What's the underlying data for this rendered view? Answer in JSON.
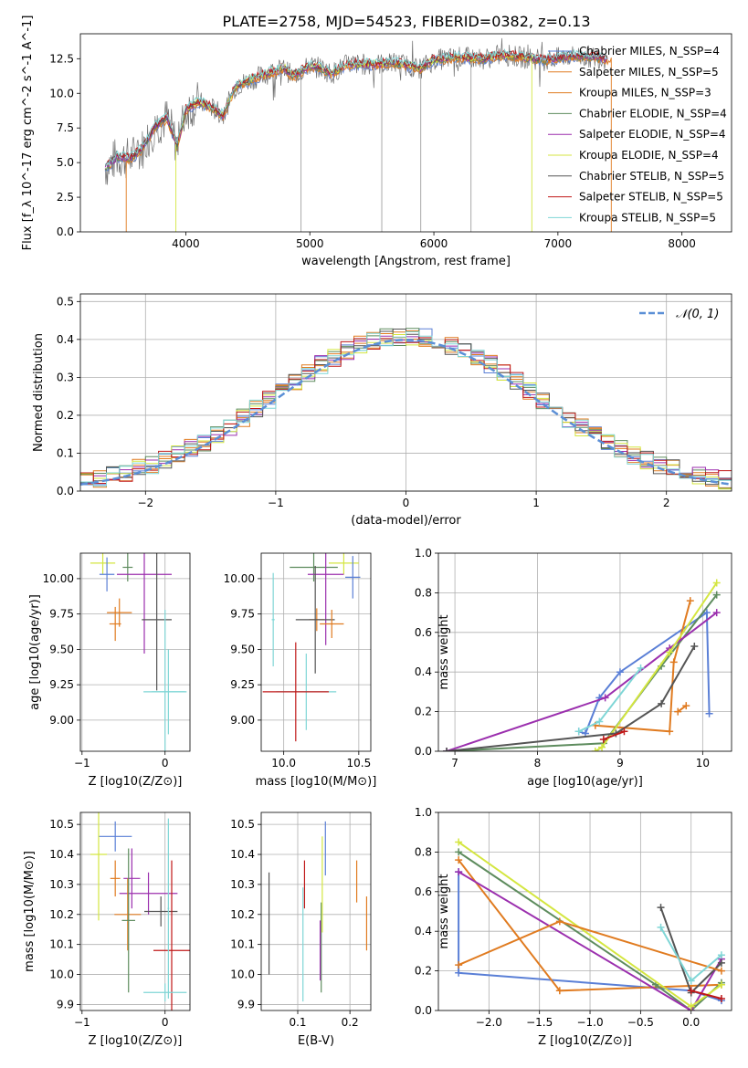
{
  "figure_title": "PLATE=2758, MJD=54523, FIBERID=0382, z=0.13",
  "colors": {
    "Chabrier MILES": "#5a7fd6",
    "Salpeter MILES": "#e07b20",
    "Kroupa MILES": "#e07b20",
    "Chabrier ELODIE": "#5e8c5e",
    "Salpeter ELODIE": "#9b2fae",
    "Kroupa ELODIE": "#d4e640",
    "Chabrier STELIB": "#555555",
    "Salpeter STELIB": "#c01818",
    "Kroupa STELIB": "#7fd6d6"
  },
  "chart_data": [
    {
      "id": "spectrum",
      "type": "line",
      "title": "PLATE=2758, MJD=54523, FIBERID=0382, z=0.13",
      "xlabel": "wavelength [Angstrom, rest frame]",
      "ylabel": "Flux [f_λ 10^-17 erg cm^-2 s^-1 A^-1]",
      "xlim": [
        3150,
        8400
      ],
      "ylim": [
        0,
        14.3
      ],
      "xticks": [
        "4000",
        "5000",
        "6000",
        "7000",
        "8000"
      ],
      "yticks": [
        "0.0",
        "2.5",
        "5.0",
        "7.5",
        "10.0",
        "12.5"
      ],
      "grid": false,
      "legend_position": "top-right",
      "legend": [
        {
          "label": "Chabrier MILES, N_SSP=4",
          "color": "#5a7fd6"
        },
        {
          "label": "Salpeter MILES, N_SSP=5",
          "color": "#e07b20"
        },
        {
          "label": "Kroupa MILES, N_SSP=3",
          "color": "#e07b20"
        },
        {
          "label": "Chabrier ELODIE, N_SSP=4",
          "color": "#5e8c5e"
        },
        {
          "label": "Salpeter ELODIE, N_SSP=4",
          "color": "#9b2fae"
        },
        {
          "label": "Kroupa ELODIE, N_SSP=4",
          "color": "#d4e640"
        },
        {
          "label": "Chabrier STELIB, N_SSP=5",
          "color": "#555555"
        },
        {
          "label": "Salpeter STELIB, N_SSP=5",
          "color": "#c01818"
        },
        {
          "label": "Kroupa STELIB, N_SSP=5",
          "color": "#7fd6d6"
        }
      ],
      "model_wavelength": [
        3350,
        3450,
        3550,
        3650,
        3750,
        3850,
        3930,
        4000,
        4100,
        4200,
        4300,
        4400,
        4500,
        4650,
        4800,
        4860,
        5000,
        5100,
        5175,
        5300,
        5500,
        5700,
        5890,
        6000,
        6200,
        6400,
        6563,
        6700,
        6900,
        7100,
        7300,
        7400
      ],
      "model_flux": [
        4.6,
        5.4,
        5.3,
        6.0,
        7.6,
        8.2,
        6.2,
        8.8,
        9.4,
        9.0,
        8.4,
        10.5,
        10.9,
        11.4,
        11.8,
        11.2,
        12.0,
        11.8,
        11.4,
        12.1,
        12.1,
        12.2,
        11.8,
        12.4,
        12.6,
        12.5,
        12.8,
        12.6,
        12.4,
        12.7,
        12.6,
        12.5
      ],
      "truncations": [
        {
          "series": "Salpeter MILES",
          "start": 3520,
          "end": 7430
        },
        {
          "series": "Kroupa ELODIE",
          "start": 3920,
          "end": 6790
        }
      ]
    },
    {
      "id": "residuals",
      "type": "line",
      "xlabel": "(data-model)/error",
      "ylabel": "Normed distribution",
      "xlim": [
        -2.5,
        2.5
      ],
      "ylim": [
        0,
        0.52
      ],
      "xticks": [
        "−2",
        "−1",
        "0",
        "1",
        "2"
      ],
      "yticks": [
        "0.0",
        "0.1",
        "0.2",
        "0.3",
        "0.4",
        "0.5"
      ],
      "grid": true,
      "legend_position": "top-right",
      "legend": [
        {
          "label": "𝒩(0, 1)",
          "color": "#5b8fd6"
        }
      ],
      "bin_width": 0.1,
      "gaussian": {
        "mean": 0,
        "sigma": 1
      }
    },
    {
      "id": "age_vs_Z",
      "type": "scatter",
      "xlabel": "Z [log10(Z/Z⊙)]",
      "ylabel": "age  [log10(age/yr)]",
      "xlim": [
        -1.02,
        0.3
      ],
      "ylim": [
        8.78,
        10.18
      ],
      "xticks": [
        "−1",
        "0"
      ],
      "yticks": [
        "9.00",
        "9.25",
        "9.50",
        "9.75",
        "10.00"
      ],
      "grid": true,
      "points": [
        {
          "series": "Kroupa ELODIE",
          "x": -0.75,
          "y": 10.11,
          "xerr": 0.15,
          "yerr": 0.08
        },
        {
          "series": "Chabrier MILES",
          "x": -0.7,
          "y": 10.03,
          "xerr": 0.09,
          "yerr": 0.12
        },
        {
          "series": "Chabrier ELODIE",
          "x": -0.45,
          "y": 10.08,
          "xerr": 0.06,
          "yerr": 0.1
        },
        {
          "series": "Salpeter ELODIE",
          "x": -0.25,
          "y": 10.03,
          "xerr": 0.33,
          "yerr": 0.56
        },
        {
          "series": "Kroupa MILES",
          "x": -0.55,
          "y": 9.76,
          "xerr": 0.15,
          "yerr": 0.1
        },
        {
          "series": "Salpeter MILES",
          "x": -0.6,
          "y": 9.68,
          "xerr": 0.07,
          "yerr": 0.12
        },
        {
          "series": "Chabrier STELIB",
          "x": -0.1,
          "y": 9.71,
          "xerr": 0.18,
          "yerr": 0.5
        },
        {
          "series": "Kroupa STELIB",
          "x": 0.0,
          "y": 9.2,
          "xerr": 0.26,
          "yerr": 0.58
        },
        {
          "series": "Kroupa STELIB",
          "x": 0.04,
          "y": 9.2,
          "xerr": 0.2,
          "yerr": 0.3
        }
      ]
    },
    {
      "id": "age_vs_mass",
      "type": "scatter",
      "xlabel": "mass [log10(M/M⊙)]",
      "ylabel": "",
      "xlim": [
        9.85,
        10.58
      ],
      "ylim": [
        8.78,
        10.18
      ],
      "xticks": [
        "10.0",
        "10.5"
      ],
      "yticks": [
        "9.00",
        "9.25",
        "9.50",
        "9.75",
        "10.00"
      ],
      "grid": true,
      "points": [
        {
          "series": "Kroupa ELODIE",
          "x": 10.4,
          "y": 10.11,
          "xerr": 0.1,
          "yerr": 0.08
        },
        {
          "series": "Chabrier ELODIE",
          "x": 10.2,
          "y": 10.08,
          "xerr": 0.16,
          "yerr": 0.1
        },
        {
          "series": "Salpeter ELODIE",
          "x": 10.28,
          "y": 10.03,
          "xerr": 0.12,
          "yerr": 0.5
        },
        {
          "series": "Chabrier MILES",
          "x": 10.46,
          "y": 10.01,
          "xerr": 0.05,
          "yerr": 0.15
        },
        {
          "series": "Kroupa STELIB",
          "x": 9.93,
          "y": 9.71,
          "xerr": 0.01,
          "yerr": 0.33
        },
        {
          "series": "Salpeter MILES",
          "x": 10.22,
          "y": 9.71,
          "xerr": 0.05,
          "yerr": 0.08
        },
        {
          "series": "Chabrier STELIB",
          "x": 10.21,
          "y": 9.71,
          "xerr": 0.13,
          "yerr": 0.38
        },
        {
          "series": "Kroupa MILES",
          "x": 10.32,
          "y": 9.68,
          "xerr": 0.08,
          "yerr": 0.1
        },
        {
          "series": "Kroupa STELIB",
          "x": 10.15,
          "y": 9.2,
          "xerr": 0.2,
          "yerr": 0.27
        },
        {
          "series": "Salpeter STELIB",
          "x": 10.08,
          "y": 9.2,
          "xerr": 0.22,
          "yerr": 0.35
        }
      ]
    },
    {
      "id": "weight_vs_age",
      "type": "line",
      "xlabel": "age  [log10(age/yr)]",
      "ylabel": "mass weight",
      "xlim": [
        6.8,
        10.35
      ],
      "ylim": [
        0,
        1.0
      ],
      "xticks": [
        "7",
        "8",
        "9",
        "10"
      ],
      "yticks": [
        "0.0",
        "0.2",
        "0.4",
        "0.6",
        "0.8",
        "1.0"
      ],
      "grid": true,
      "series": [
        {
          "name": "Chabrier MILES",
          "x": [
            8.5,
            8.58,
            8.75,
            9.0,
            10.05,
            10.08
          ],
          "y": [
            0.1,
            0.09,
            0.27,
            0.4,
            0.7,
            0.19
          ]
        },
        {
          "name": "Salpeter MILES",
          "x": [
            8.7,
            9.6,
            9.65,
            9.85
          ],
          "y": [
            0.13,
            0.1,
            0.45,
            0.76
          ]
        },
        {
          "name": "Chabrier ELODIE",
          "x": [
            6.9,
            8.8,
            9.5,
            10.17
          ],
          "y": [
            0.0,
            0.04,
            0.43,
            0.79
          ]
        },
        {
          "name": "Salpeter ELODIE",
          "x": [
            6.9,
            8.82,
            9.6,
            10.17
          ],
          "y": [
            0.0,
            0.27,
            0.52,
            0.7
          ]
        },
        {
          "name": "Kroupa ELODIE",
          "x": [
            8.7,
            8.78,
            9.6,
            10.17
          ],
          "y": [
            0.0,
            0.02,
            0.5,
            0.85
          ]
        },
        {
          "name": "Chabrier STELIB",
          "x": [
            6.9,
            8.95,
            9.5,
            9.9
          ],
          "y": [
            0.0,
            0.09,
            0.24,
            0.53
          ]
        },
        {
          "name": "Salpeter STELIB",
          "x": [
            8.8,
            9.05
          ],
          "y": [
            0.06,
            0.1
          ]
        },
        {
          "name": "Kroupa STELIB",
          "x": [
            8.5,
            8.75,
            9.25
          ],
          "y": [
            0.1,
            0.15,
            0.42
          ]
        },
        {
          "name": "Kroupa MILES",
          "x": [
            9.7,
            9.8
          ],
          "y": [
            0.2,
            0.23
          ]
        }
      ]
    },
    {
      "id": "mass_vs_Z",
      "type": "scatter",
      "xlabel": "Z [log10(Z/Z⊙)]",
      "ylabel": "mass [log10(M/M⊙)]",
      "xlim": [
        -1.02,
        0.3
      ],
      "ylim": [
        9.88,
        10.54
      ],
      "xticks": [
        "−1",
        "0"
      ],
      "yticks": [
        "9.9",
        "10.0",
        "10.1",
        "10.2",
        "10.3",
        "10.4",
        "10.5"
      ],
      "grid": true,
      "points": [
        {
          "series": "Chabrier MILES",
          "x": -0.6,
          "y": 10.46,
          "xerr": 0.2,
          "yerr": 0.05
        },
        {
          "series": "Kroupa ELODIE",
          "x": -0.8,
          "y": 10.4,
          "xerr": 0.1,
          "yerr": 0.22
        },
        {
          "series": "Salpeter ELODIE",
          "x": -0.4,
          "y": 10.32,
          "xerr": 0.1,
          "yerr": 0.1
        },
        {
          "series": "Kroupa MILES",
          "x": -0.6,
          "y": 10.32,
          "xerr": 0.06,
          "yerr": 0.06
        },
        {
          "series": "Salpeter ELODIE",
          "x": -0.2,
          "y": 10.27,
          "xerr": 0.35,
          "yerr": 0.07
        },
        {
          "series": "Salpeter MILES",
          "x": -0.45,
          "y": 10.2,
          "xerr": 0.16,
          "yerr": 0.12
        },
        {
          "series": "Chabrier STELIB",
          "x": -0.05,
          "y": 10.21,
          "xerr": 0.2,
          "yerr": 0.05
        },
        {
          "series": "Chabrier ELODIE",
          "x": -0.44,
          "y": 10.18,
          "xerr": 0.08,
          "yerr": 0.24
        },
        {
          "series": "Salpeter STELIB",
          "x": 0.08,
          "y": 10.08,
          "xerr": 0.22,
          "yerr": 0.3
        },
        {
          "series": "Kroupa STELIB",
          "x": 0.0,
          "y": 9.94,
          "xerr": 0.26,
          "yerr": 0.03
        },
        {
          "series": "Kroupa STELIB",
          "x": 0.04,
          "y": 10.22,
          "xerr": 0.01,
          "yerr": 0.3
        }
      ]
    },
    {
      "id": "mass_vs_EBV",
      "type": "scatter",
      "xlabel": "E(B-V)",
      "ylabel": "",
      "xlim": [
        0.03,
        0.24
      ],
      "ylim": [
        9.88,
        10.54
      ],
      "xticks": [
        "0.1",
        "0.2"
      ],
      "yticks": [
        "9.9",
        "10.0",
        "10.1",
        "10.2",
        "10.3",
        "10.4",
        "10.5"
      ],
      "grid": true,
      "points": [
        {
          "series": "Chabrier STELIB",
          "x": 0.045,
          "y": 10.17,
          "xerr": 0,
          "yerr": 0.17
        },
        {
          "series": "Kroupa STELIB",
          "x": 0.11,
          "y": 10.1,
          "xerr": 0,
          "yerr": 0.19
        },
        {
          "series": "Salpeter STELIB",
          "x": 0.113,
          "y": 10.3,
          "xerr": 0,
          "yerr": 0.08
        },
        {
          "series": "Chabrier ELODIE",
          "x": 0.145,
          "y": 10.09,
          "xerr": 0,
          "yerr": 0.15
        },
        {
          "series": "Salpeter ELODIE",
          "x": 0.143,
          "y": 10.08,
          "xerr": 0,
          "yerr": 0.1
        },
        {
          "series": "Kroupa ELODIE",
          "x": 0.147,
          "y": 10.3,
          "xerr": 0,
          "yerr": 0.16
        },
        {
          "series": "Chabrier MILES",
          "x": 0.153,
          "y": 10.42,
          "xerr": 0,
          "yerr": 0.09
        },
        {
          "series": "Kroupa MILES",
          "x": 0.213,
          "y": 10.31,
          "xerr": 0,
          "yerr": 0.07
        },
        {
          "series": "Salpeter MILES",
          "x": 0.232,
          "y": 10.17,
          "xerr": 0,
          "yerr": 0.09
        }
      ]
    },
    {
      "id": "weight_vs_Z",
      "type": "line",
      "xlabel": "Z [log10(Z/Z⊙)]",
      "ylabel": "mass weight",
      "xlim": [
        -2.5,
        0.4
      ],
      "ylim": [
        0,
        1.0
      ],
      "xticks": [
        "−2.0",
        "−1.5",
        "−1.0",
        "−0.5",
        "0.0"
      ],
      "yticks": [
        "0.0",
        "0.2",
        "0.4",
        "0.6",
        "0.8",
        "1.0"
      ],
      "grid": true,
      "series": [
        {
          "name": "Chabrier MILES",
          "x": [
            -2.3,
            -2.3,
            0.0,
            0.3
          ],
          "y": [
            0.7,
            0.19,
            0.1,
            0.05
          ]
        },
        {
          "name": "Salpeter MILES",
          "x": [
            -2.3,
            -1.3,
            0.3
          ],
          "y": [
            0.76,
            0.1,
            0.13
          ]
        },
        {
          "name": "Chabrier ELODIE",
          "x": [
            -2.3,
            -0.35,
            0.0,
            0.3
          ],
          "y": [
            0.8,
            0.13,
            0.0,
            0.14
          ]
        },
        {
          "name": "Salpeter ELODIE",
          "x": [
            -2.3,
            0.0,
            0.3
          ],
          "y": [
            0.7,
            0.0,
            0.26
          ]
        },
        {
          "name": "Kroupa ELODIE",
          "x": [
            -2.3,
            0.0,
            0.3
          ],
          "y": [
            0.85,
            0.02,
            0.13
          ]
        },
        {
          "name": "Chabrier STELIB",
          "x": [
            -0.3,
            0.0,
            0.3
          ],
          "y": [
            0.52,
            0.09,
            0.24
          ]
        },
        {
          "name": "Kroupa MILES",
          "x": [
            -2.3,
            -1.3,
            0.3
          ],
          "y": [
            0.23,
            0.45,
            0.2
          ]
        },
        {
          "name": "Kroupa STELIB",
          "x": [
            -0.3,
            0.0,
            0.3
          ],
          "y": [
            0.42,
            0.15,
            0.28
          ]
        },
        {
          "name": "Salpeter STELIB",
          "x": [
            0.0,
            0.3
          ],
          "y": [
            0.1,
            0.06
          ]
        }
      ]
    }
  ]
}
